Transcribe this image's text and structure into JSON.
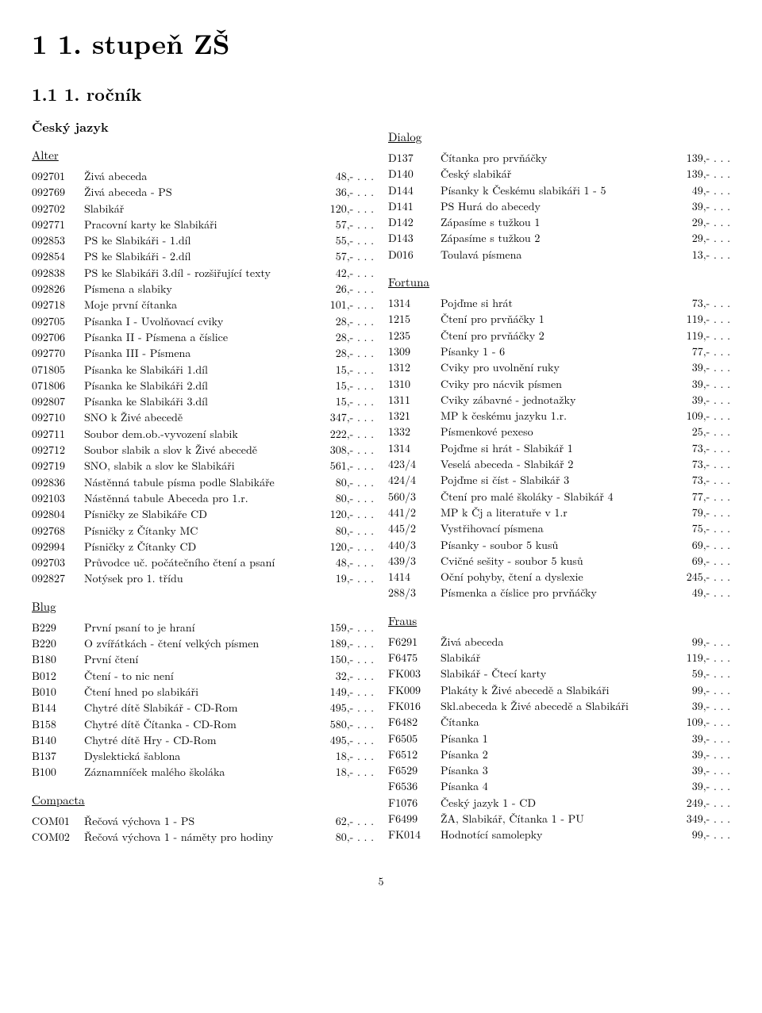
{
  "page_number": "5",
  "chapter_title": "1 1. stupeň ZŠ",
  "section_title": "1.1   1. ročník",
  "subject_heading": "Český jazyk",
  "left_groups": [
    {
      "publisher": "Alter",
      "items": [
        {
          "code": "092701",
          "name": "Živá abeceda",
          "price": "48,- . . ."
        },
        {
          "code": "092769",
          "name": "Živá abeceda - PS",
          "price": "36,- . . ."
        },
        {
          "code": "092702",
          "name": "Slabikář",
          "price": "120,- . . ."
        },
        {
          "code": "092771",
          "name": "Pracovní karty ke Slabikáři",
          "price": "57,- . . ."
        },
        {
          "code": "092853",
          "name": "PS ke Slabikáři - 1.díl",
          "price": "55,- . . ."
        },
        {
          "code": "092854",
          "name": "PS ke Slabikáři - 2.díl",
          "price": "57,- . . ."
        },
        {
          "code": "092838",
          "name": "PS ke Slabikáři 3.díl - rozšiřující texty",
          "price": "42,- . . ."
        },
        {
          "code": "092826",
          "name": "Písmena a slabiky",
          "price": "26,- . . ."
        },
        {
          "code": "092718",
          "name": "Moje první čítanka",
          "price": "101,- . . ."
        },
        {
          "code": "092705",
          "name": "Písanka I - Uvolňovací cviky",
          "price": "28,- . . ."
        },
        {
          "code": "092706",
          "name": "Písanka II - Písmena a číslice",
          "price": "28,- . . ."
        },
        {
          "code": "092770",
          "name": "Písanka III - Písmena",
          "price": "28,- . . ."
        },
        {
          "code": "071805",
          "name": "Písanka ke Slabikáři 1.díl",
          "price": "15,- . . ."
        },
        {
          "code": "071806",
          "name": "Písanka ke Slabikáři 2.díl",
          "price": "15,- . . ."
        },
        {
          "code": "092807",
          "name": "Písanka ke Slabikáři 3.díl",
          "price": "15,- . . ."
        },
        {
          "code": "092710",
          "name": "SNO k Živé abecedě",
          "price": "347,- . . ."
        },
        {
          "code": "092711",
          "name": "Soubor dem.ob.-vyvození slabik",
          "price": "222,- . . ."
        },
        {
          "code": "092712",
          "name": "Soubor slabik a slov k Živé abecedě",
          "price": "308,- . . ."
        },
        {
          "code": "092719",
          "name": "SNO, slabik a slov ke Slabikáři",
          "price": "561,- . . ."
        },
        {
          "code": "092836",
          "name": "Nástěnná tabule písma podle Slabikáře",
          "price": "80,- . . ."
        },
        {
          "code": "092103",
          "name": "Nástěnná tabule Abeceda pro 1.r.",
          "price": "80,- . . ."
        },
        {
          "code": "092804",
          "name": "Písničky ze Slabikáře CD",
          "price": "120,- . . ."
        },
        {
          "code": "092768",
          "name": "Písničky z Čítanky MC",
          "price": "80,- . . ."
        },
        {
          "code": "092994",
          "name": "Písničky z Čítanky CD",
          "price": "120,- . . ."
        },
        {
          "code": "092703",
          "name": "Průvodce uč. počátečního čtení a psaní",
          "price": "48,- . . ."
        },
        {
          "code": "092827",
          "name": "Notýsek pro 1. třídu",
          "price": "19,- . . ."
        }
      ]
    },
    {
      "publisher": "Blug",
      "items": [
        {
          "code": "B229",
          "name": "První psaní to je hraní",
          "price": "159,- . . ."
        },
        {
          "code": "B220",
          "name": "O zvířátkách - čtení velkých písmen",
          "price": "189,- . . ."
        },
        {
          "code": "B180",
          "name": "První čtení",
          "price": "150,- . . ."
        },
        {
          "code": "B012",
          "name": "Čtení - to nic není",
          "price": "32,- . . ."
        },
        {
          "code": "B010",
          "name": "Čtení hned po slabikáři",
          "price": "149,- . . ."
        },
        {
          "code": "B144",
          "name": "Chytré dítě Slabikář - CD-Rom",
          "price": "495,- . . ."
        },
        {
          "code": "B158",
          "name": "Chytré dítě Čítanka - CD-Rom",
          "price": "580,- . . ."
        },
        {
          "code": "B140",
          "name": "Chytré dítě Hry - CD-Rom",
          "price": "495,- . . ."
        },
        {
          "code": "B137",
          "name": "Dyslektická šablona",
          "price": "18,- . . ."
        },
        {
          "code": "B100",
          "name": "Záznamníček malého školáka",
          "price": "18,- . . ."
        }
      ]
    },
    {
      "publisher": "Compacta",
      "items": [
        {
          "code": "COM01",
          "name": "Řečová výchova 1 - PS",
          "price": "62,- . . ."
        },
        {
          "code": "COM02",
          "name": "Řečová výchova 1 - náměty pro hodiny",
          "price": "80,- . . ."
        }
      ]
    }
  ],
  "right_groups": [
    {
      "publisher": "Dialog",
      "items": [
        {
          "code": "D137",
          "name": "Čítanka pro prvňáčky",
          "price": "139,- . . ."
        },
        {
          "code": "D140",
          "name": "Český slabikář",
          "price": "139,- . . ."
        },
        {
          "code": "D144",
          "name": "Písanky k Českému slabikáři 1 - 5",
          "price": "49,- . . ."
        },
        {
          "code": "D141",
          "name": "PS Hurá do abecedy",
          "price": "39,- . . ."
        },
        {
          "code": "D142",
          "name": "Zápasíme s tužkou 1",
          "price": "29,- . . ."
        },
        {
          "code": "D143",
          "name": "Zápasíme s tužkou 2",
          "price": "29,- . . ."
        },
        {
          "code": "D016",
          "name": "Toulavá písmena",
          "price": "13,- . . ."
        }
      ]
    },
    {
      "publisher": "Fortuna",
      "items": [
        {
          "code": "1314",
          "name": "Pojďme si hrát",
          "price": "73,- . . ."
        },
        {
          "code": "1215",
          "name": "Čtení pro prvňáčky 1",
          "price": "119,- . . ."
        },
        {
          "code": "1235",
          "name": "Čtení pro prvňáčky 2",
          "price": "119,- . . ."
        },
        {
          "code": "1309",
          "name": "Písanky 1 - 6",
          "price": "77,- . . ."
        },
        {
          "code": "1312",
          "name": "Cviky pro uvolnění ruky",
          "price": "39,- . . ."
        },
        {
          "code": "1310",
          "name": "Cviky pro nácvik písmen",
          "price": "39,- . . ."
        },
        {
          "code": "1311",
          "name": "Cviky zábavné - jednotažky",
          "price": "39,- . . ."
        },
        {
          "code": "1321",
          "name": "MP k českému jazyku 1.r.",
          "price": "109,- . . ."
        },
        {
          "code": "1332",
          "name": "Písmenkové pexeso",
          "price": "25,- . . ."
        },
        {
          "code": "1314",
          "name": "Pojďme si hrát - Slabikář 1",
          "price": "73,- . . ."
        },
        {
          "code": "423/4",
          "name": "Veselá abeceda - Slabikář 2",
          "price": "73,- . . ."
        },
        {
          "code": "424/4",
          "name": "Pojďme si číst - Slabikář 3",
          "price": "73,- . . ."
        },
        {
          "code": "560/3",
          "name": "Čtení pro malé školáky - Slabikář 4",
          "price": "77,- . . ."
        },
        {
          "code": "441/2",
          "name": "MP k Čj a literatuře v 1.r",
          "price": "79,- . . ."
        },
        {
          "code": "445/2",
          "name": "Vystřihovací písmena",
          "price": "75,- . . ."
        },
        {
          "code": "440/3",
          "name": "Písanky - soubor 5 kusů",
          "price": "69,- . . ."
        },
        {
          "code": "439/3",
          "name": "Cvičné sešity - soubor 5 kusů",
          "price": "69,- . . ."
        },
        {
          "code": "1414",
          "name": "Oční pohyby, čtení a dyslexie",
          "price": "245,- . . ."
        },
        {
          "code": "288/3",
          "name": "Písmenka a číslice pro prvňáčky",
          "price": "49,- . . ."
        }
      ]
    },
    {
      "publisher": "Fraus",
      "items": [
        {
          "code": "F6291",
          "name": "Živá abeceda",
          "price": "99,- . . ."
        },
        {
          "code": "F6475",
          "name": "Slabikář",
          "price": "119,- . . ."
        },
        {
          "code": "FK003",
          "name": "Slabikář - Čtecí karty",
          "price": "59,- . . ."
        },
        {
          "code": "FK009",
          "name": "Plakáty k Živé abecedě a Slabikáři",
          "price": "99,- . . ."
        },
        {
          "code": "FK016",
          "name": "Skl.abeceda k Živé abecedě a Slabikáři",
          "price": "39,- . . ."
        },
        {
          "code": "F6482",
          "name": "Čítanka",
          "price": "109,- . . ."
        },
        {
          "code": "F6505",
          "name": "Písanka 1",
          "price": "39,- . . ."
        },
        {
          "code": "F6512",
          "name": "Písanka 2",
          "price": "39,- . . ."
        },
        {
          "code": "F6529",
          "name": "Písanka 3",
          "price": "39,- . . ."
        },
        {
          "code": "F6536",
          "name": "Písanka 4",
          "price": "39,- . . ."
        },
        {
          "code": "F1076",
          "name": "Český jazyk 1 - CD",
          "price": "249,- . . ."
        },
        {
          "code": "F6499",
          "name": "ŽA, Slabikář, Čítanka 1 - PU",
          "price": "349,- . . ."
        },
        {
          "code": "FK014",
          "name": "Hodnotící samolepky",
          "price": "99,- . . ."
        }
      ]
    }
  ]
}
